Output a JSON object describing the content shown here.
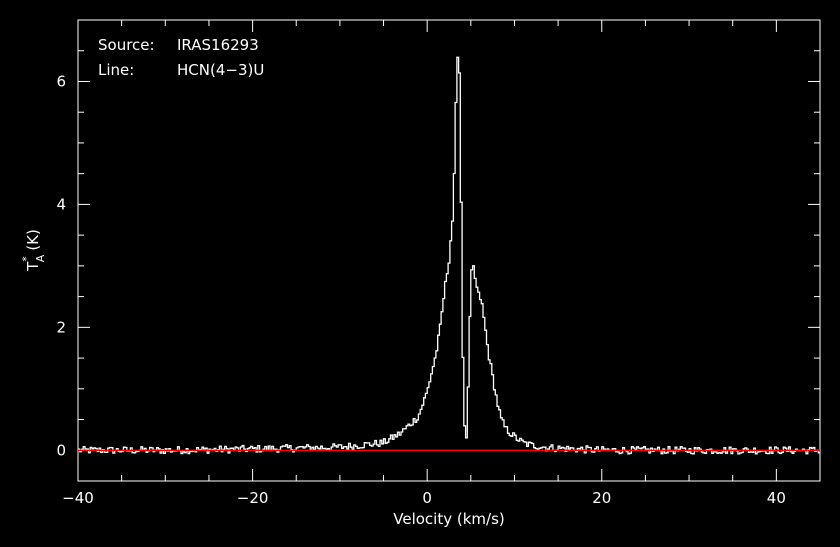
{
  "chart_data": {
    "type": "line",
    "title": "",
    "info": {
      "source_label": "Source:",
      "source_value": "IRAS16293",
      "line_label": "Line:",
      "line_value": "HCN(4−3)U"
    },
    "xlabel": "Velocity (km/s)",
    "ylabel": "T",
    "ylabel_sup": "*",
    "ylabel_sub": "A",
    "ylabel_unit": "(K)",
    "xlim": [
      -40,
      45
    ],
    "ylim": [
      -0.5,
      7.0
    ],
    "xticks": [
      -40,
      -20,
      0,
      20,
      40
    ],
    "xtick_labels": [
      "−40",
      "−20",
      "0",
      "20",
      "40"
    ],
    "yticks": [
      0,
      2,
      4,
      6
    ],
    "ytick_labels": [
      "0",
      "2",
      "4",
      "6"
    ],
    "grid": false,
    "series": [
      {
        "color": "#ffffff",
        "style": "step",
        "x": [
          -40,
          -30,
          -20,
          -10,
          -5,
          -3,
          -1,
          0,
          1,
          1.5,
          2,
          2.5,
          3,
          3.2,
          3.4,
          3.6,
          3.8,
          4.0,
          4.2,
          4.4,
          4.6,
          4.8,
          5.0,
          5.2,
          5.5,
          5.8,
          6.2,
          6.6,
          7.0,
          7.5,
          8.0,
          8.5,
          9.0,
          10,
          11,
          12,
          14,
          17,
          20,
          30,
          45
        ],
        "y": [
          0.0,
          0.0,
          0.02,
          0.05,
          0.12,
          0.28,
          0.55,
          0.95,
          1.55,
          2.0,
          2.6,
          3.1,
          3.9,
          5.0,
          6.2,
          6.7,
          5.6,
          2.5,
          0.6,
          0.1,
          0.35,
          1.6,
          2.7,
          3.05,
          2.8,
          2.55,
          2.45,
          2.05,
          1.6,
          1.2,
          0.8,
          0.5,
          0.35,
          0.22,
          0.12,
          0.08,
          0.04,
          0.02,
          0.0,
          0.0,
          0.0
        ]
      },
      {
        "color": "#ff0000",
        "style": "line",
        "x": [
          -40,
          45
        ],
        "y": [
          0,
          0
        ]
      }
    ]
  }
}
